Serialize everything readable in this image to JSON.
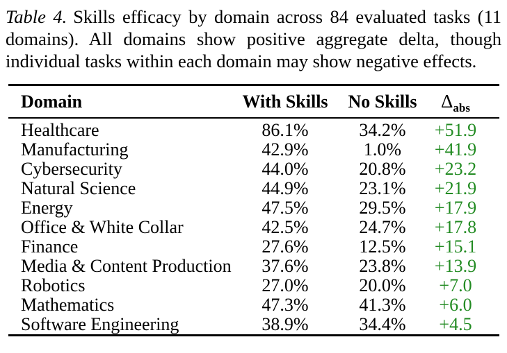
{
  "caption": {
    "label": "Table 4.",
    "text": "Skills efficacy by domain across 84 evaluated tasks (11 domains). All domains show positive aggregate delta, though individual tasks within each domain may show negative effects."
  },
  "table": {
    "headers": {
      "domain": "Domain",
      "with_skills": "With Skills",
      "no_skills": "No Skills",
      "delta_symbol": "Δ",
      "delta_subscript": "abs"
    },
    "rows": [
      {
        "domain": "Healthcare",
        "with_skills": "86.1%",
        "no_skills": "34.2%",
        "delta": "+51.9"
      },
      {
        "domain": "Manufacturing",
        "with_skills": "42.9%",
        "no_skills": "1.0%",
        "delta": "+41.9"
      },
      {
        "domain": "Cybersecurity",
        "with_skills": "44.0%",
        "no_skills": "20.8%",
        "delta": "+23.2"
      },
      {
        "domain": "Natural Science",
        "with_skills": "44.9%",
        "no_skills": "23.1%",
        "delta": "+21.9"
      },
      {
        "domain": "Energy",
        "with_skills": "47.5%",
        "no_skills": "29.5%",
        "delta": "+17.9"
      },
      {
        "domain": "Office & White Collar",
        "with_skills": "42.5%",
        "no_skills": "24.7%",
        "delta": "+17.8"
      },
      {
        "domain": "Finance",
        "with_skills": "27.6%",
        "no_skills": "12.5%",
        "delta": "+15.1"
      },
      {
        "domain": "Media & Content Production",
        "with_skills": "37.6%",
        "no_skills": "23.8%",
        "delta": "+13.9"
      },
      {
        "domain": "Robotics",
        "with_skills": "27.0%",
        "no_skills": "20.0%",
        "delta": "+7.0"
      },
      {
        "domain": "Mathematics",
        "with_skills": "47.3%",
        "no_skills": "41.3%",
        "delta": "+6.0"
      },
      {
        "domain": "Software Engineering",
        "with_skills": "38.9%",
        "no_skills": "34.4%",
        "delta": "+4.5"
      }
    ],
    "colors": {
      "delta_positive": "#228B22",
      "text": "#000000",
      "rule": "#000000",
      "background": "#ffffff"
    }
  }
}
